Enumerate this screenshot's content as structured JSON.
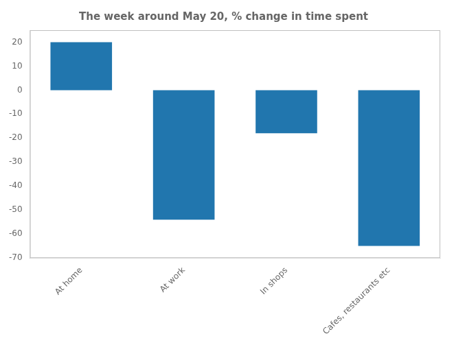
{
  "chart_data": {
    "type": "bar",
    "title": "The week around May 20, % change in time spent",
    "categories": [
      "At home",
      "At work",
      "In shops",
      "Cafes, restaurants etc"
    ],
    "values": [
      20,
      -54,
      -18,
      -65
    ],
    "color": "#2176AE",
    "ylim": [
      -70,
      25
    ],
    "yticks": [
      -70,
      -60,
      -50,
      -40,
      -30,
      -20,
      -10,
      0,
      10,
      20
    ],
    "grid": false
  }
}
